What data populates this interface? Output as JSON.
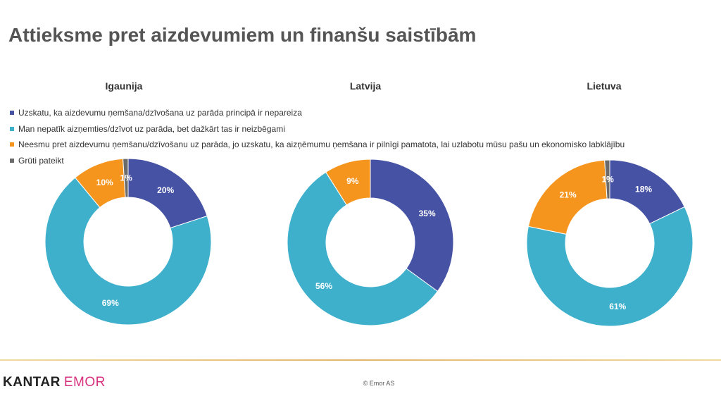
{
  "page": {
    "title": "Attieksme pret aizdevumiem un finanšu saistībām",
    "logo_brand": "KANTAR",
    "logo_sub": "EMOR",
    "copyright": "© Emor AS"
  },
  "colors": {
    "dark_blue": "#4652a3",
    "light_blue": "#3fb0cc",
    "orange": "#f5951e",
    "gray": "#6b6b6b",
    "logo_pink": "#d6327e",
    "footer_gold": "#e2b56a"
  },
  "chart_data": [
    {
      "type": "pie",
      "title": "Igaunija",
      "categories": [
        "Uzskatu, ka aizdevumu ņemšana/dzīvošana uz parāda principā ir nepareiza",
        "Man nepatīk aizņemties/dzīvot uz parāda, bet dažkārt tas ir neizbēgami",
        "Neesmu pret aizdevumu ņemšanu/dzīvošanu uz parāda, jo uzskatu, ka aizņēmumu ņemšana ir pilnīgi pamatota, lai uzlabotu mūsu pašu un ekonomisko labklājību",
        "Grūti pateikt"
      ],
      "values": [
        20,
        69,
        10,
        1
      ],
      "labels": [
        "20%",
        "69%",
        "10%",
        "1%"
      ]
    },
    {
      "type": "pie",
      "title": "Latvija",
      "categories": [
        "Uzskatu, ka aizdevumu ņemšana/dzīvošana uz parāda principā ir nepareiza",
        "Man nepatīk aizņemties/dzīvot uz parāda, bet dažkārt tas ir neizbēgami",
        "Neesmu pret aizdevumu ņemšanu/dzīvošanu uz parāda, jo uzskatu, ka aizņēmumu ņemšana ir pilnīgi pamatota, lai uzlabotu mūsu pašu un ekonomisko labklājību",
        "Grūti pateikt"
      ],
      "values": [
        35,
        56,
        9,
        0
      ],
      "labels": [
        "35%",
        "56%",
        "9%",
        ""
      ]
    },
    {
      "type": "pie",
      "title": "Lietuva",
      "categories": [
        "Uzskatu, ka aizdevumu ņemšana/dzīvošana uz parāda principā ir nepareiza",
        "Man nepatīk aizņemties/dzīvot uz parāda, bet dažkārt tas ir neizbēgami",
        "Neesmu pret aizdevumu ņemšanu/dzīvošanu uz parāda, jo uzskatu, ka aizņēmumu ņemšana ir pilnīgi pamatota, lai uzlabotu mūsu pašu un ekonomisko labklājību",
        "Grūti pateikt"
      ],
      "values": [
        18,
        61,
        21,
        1
      ],
      "labels": [
        "18%",
        "61%",
        "21%",
        "1%"
      ]
    }
  ],
  "legend": {
    "placement": "top-left",
    "items": [
      {
        "label": "Uzskatu, ka aizdevumu ņemšana/dzīvošana uz parāda principā ir nepareiza",
        "color": "#4652a3"
      },
      {
        "label": "Man nepatīk aizņemties/dzīvot uz parāda, bet dažkārt tas ir neizbēgami",
        "color": "#3fb0cc"
      },
      {
        "label": "Neesmu pret aizdevumu ņemšanu/dzīvošanu uz parāda, jo uzskatu, ka aizņēmumu ņemšana ir pilnīgi pamatota, lai uzlabotu mūsu pašu un ekonomisko labklājību",
        "color": "#f5951e"
      },
      {
        "label": "Grūti pateikt",
        "color": "#6b6b6b"
      }
    ]
  }
}
